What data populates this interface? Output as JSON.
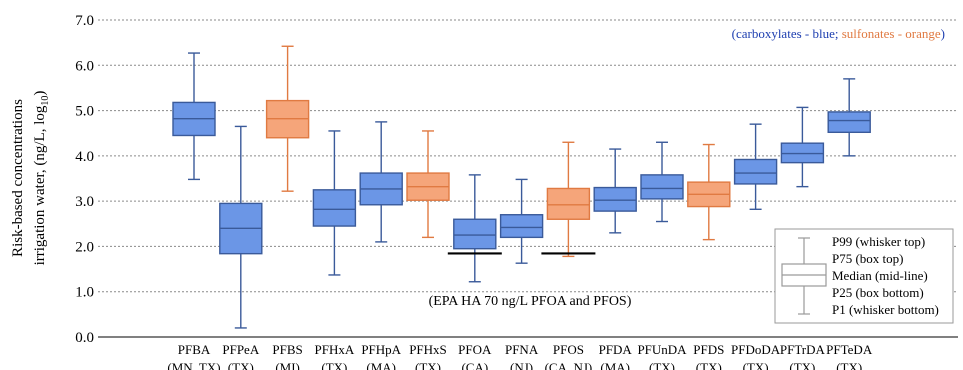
{
  "colors": {
    "blue_fill": "#6b96e6",
    "blue_stroke": "#3a5a9a",
    "orange_fill": "#f5a57a",
    "orange_stroke": "#e07a42",
    "grid": "#8a8a8a",
    "axis": "#000000"
  },
  "chart_data": {
    "type": "box",
    "ylabel_line1": "Risk-based concentrations",
    "ylabel_line2_prefix": "irrigation water, (ng/L, log",
    "ylabel_line2_sub": "10",
    "ylabel_line2_suffix": ")",
    "ylim": [
      0,
      7
    ],
    "yticks": [
      "0.0",
      "1.0",
      "2.0",
      "3.0",
      "4.0",
      "5.0",
      "6.0",
      "7.0"
    ],
    "grid": "horizontal dotted",
    "annotation_color_key": {
      "open": "(",
      "blue_text": "carboxylates - blue",
      "sep": "; ",
      "orange_text": "sulfonates - orange",
      "close": ")"
    },
    "reference_note": "(EPA HA 70 ng/L PFOA and PFOS)",
    "reference_value": 1.845,
    "categories": [
      {
        "name": "PFBA",
        "state": "(MN, TX)",
        "group": "carboxylate",
        "p1": 3.48,
        "p25": 4.45,
        "median": 4.82,
        "p75": 5.18,
        "p99": 6.27
      },
      {
        "name": "PFPeA",
        "state": "(TX)",
        "group": "carboxylate",
        "p1": 0.2,
        "p25": 1.84,
        "median": 2.4,
        "p75": 2.95,
        "p99": 4.65
      },
      {
        "name": "PFBS",
        "state": "(MI)",
        "group": "sulfonate",
        "p1": 3.22,
        "p25": 4.4,
        "median": 4.82,
        "p75": 5.22,
        "p99": 6.42
      },
      {
        "name": "PFHxA",
        "state": "(TX)",
        "group": "carboxylate",
        "p1": 1.37,
        "p25": 2.45,
        "median": 2.82,
        "p75": 3.25,
        "p99": 4.55
      },
      {
        "name": "PFHpA",
        "state": "(MA)",
        "group": "carboxylate",
        "p1": 2.1,
        "p25": 2.92,
        "median": 3.27,
        "p75": 3.62,
        "p99": 4.75
      },
      {
        "name": "PFHxS",
        "state": "(TX)",
        "group": "sulfonate",
        "p1": 2.2,
        "p25": 3.02,
        "median": 3.32,
        "p75": 3.62,
        "p99": 4.55
      },
      {
        "name": "PFOA",
        "state": "(CA)",
        "group": "carboxylate",
        "p1": 1.22,
        "p25": 1.95,
        "median": 2.25,
        "p75": 2.6,
        "p99": 3.58,
        "ref": true
      },
      {
        "name": "PFNA",
        "state": "(NJ)",
        "group": "carboxylate",
        "p1": 1.63,
        "p25": 2.2,
        "median": 2.42,
        "p75": 2.7,
        "p99": 3.48
      },
      {
        "name": "PFOS",
        "state": "(CA, NJ)",
        "group": "sulfonate",
        "p1": 1.78,
        "p25": 2.6,
        "median": 2.92,
        "p75": 3.28,
        "p99": 4.3,
        "ref": true
      },
      {
        "name": "PFDA",
        "state": "(MA)",
        "group": "carboxylate",
        "p1": 2.3,
        "p25": 2.78,
        "median": 3.02,
        "p75": 3.3,
        "p99": 4.15
      },
      {
        "name": "PFUnDA",
        "state": "(TX)",
        "group": "carboxylate",
        "p1": 2.55,
        "p25": 3.05,
        "median": 3.28,
        "p75": 3.58,
        "p99": 4.3
      },
      {
        "name": "PFDS",
        "state": "(TX)",
        "group": "sulfonate",
        "p1": 2.15,
        "p25": 2.88,
        "median": 3.15,
        "p75": 3.42,
        "p99": 4.25
      },
      {
        "name": "PFDoDA",
        "state": "(TX)",
        "group": "carboxylate",
        "p1": 2.82,
        "p25": 3.38,
        "median": 3.62,
        "p75": 3.92,
        "p99": 4.7
      },
      {
        "name": "PFTrDA",
        "state": "(TX)",
        "group": "carboxylate",
        "p1": 3.32,
        "p25": 3.85,
        "median": 4.05,
        "p75": 4.28,
        "p99": 5.07
      },
      {
        "name": "PFTeDA",
        "state": "(TX)",
        "group": "carboxylate",
        "p1": 4.0,
        "p25": 4.52,
        "median": 4.78,
        "p75": 4.97,
        "p99": 5.7
      }
    ],
    "legend": {
      "items": [
        "P99 (whisker top)",
        "P75 (box top)",
        "Median (mid-line)",
        "P25 (box bottom)",
        "P1 (whisker bottom)"
      ]
    }
  }
}
